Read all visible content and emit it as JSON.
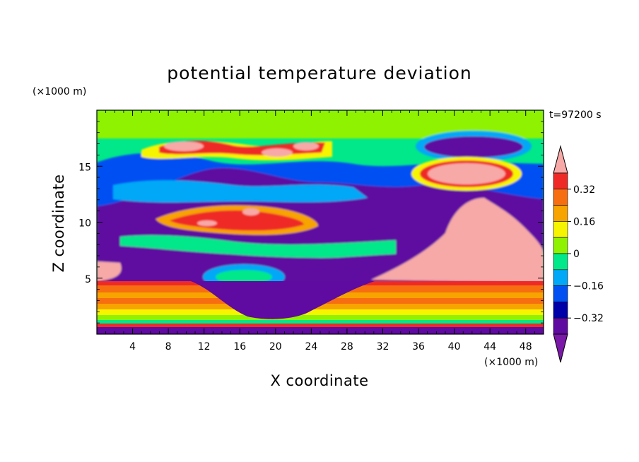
{
  "chart_data": {
    "type": "heatmap",
    "title": "potential temperature deviation",
    "time_label": "t=97200 s",
    "xlabel": "X coordinate",
    "ylabel": "Z coordinate",
    "x_unit": "(×1000 m)",
    "y_unit": "(×1000 m)",
    "xlim": [
      0,
      50
    ],
    "ylim": [
      0,
      20
    ],
    "x_ticks": [
      4,
      8,
      12,
      16,
      20,
      24,
      28,
      32,
      36,
      40,
      44,
      48
    ],
    "y_ticks": [
      5,
      10,
      15
    ],
    "colorbar": {
      "levels": [
        -0.4,
        -0.32,
        -0.24,
        -0.16,
        -0.08,
        0,
        0.08,
        0.16,
        0.24,
        0.32,
        0.4
      ],
      "labeled_ticks": [
        "0.32",
        "0.16",
        "0",
        "−0.16",
        "−0.32"
      ],
      "labeled_values": [
        0.32,
        0.16,
        0,
        -0.16,
        -0.32
      ],
      "colors_top_to_bottom": [
        "#f7a9a8",
        "#ef2a26",
        "#f76e10",
        "#f7a300",
        "#f7f400",
        "#8ff200",
        "#00e88a",
        "#00a8f7",
        "#0050f2",
        "#0000a8",
        "#5f0aa0",
        "#7a18a8"
      ],
      "extend": "both"
    },
    "bands_note_free": true
  }
}
